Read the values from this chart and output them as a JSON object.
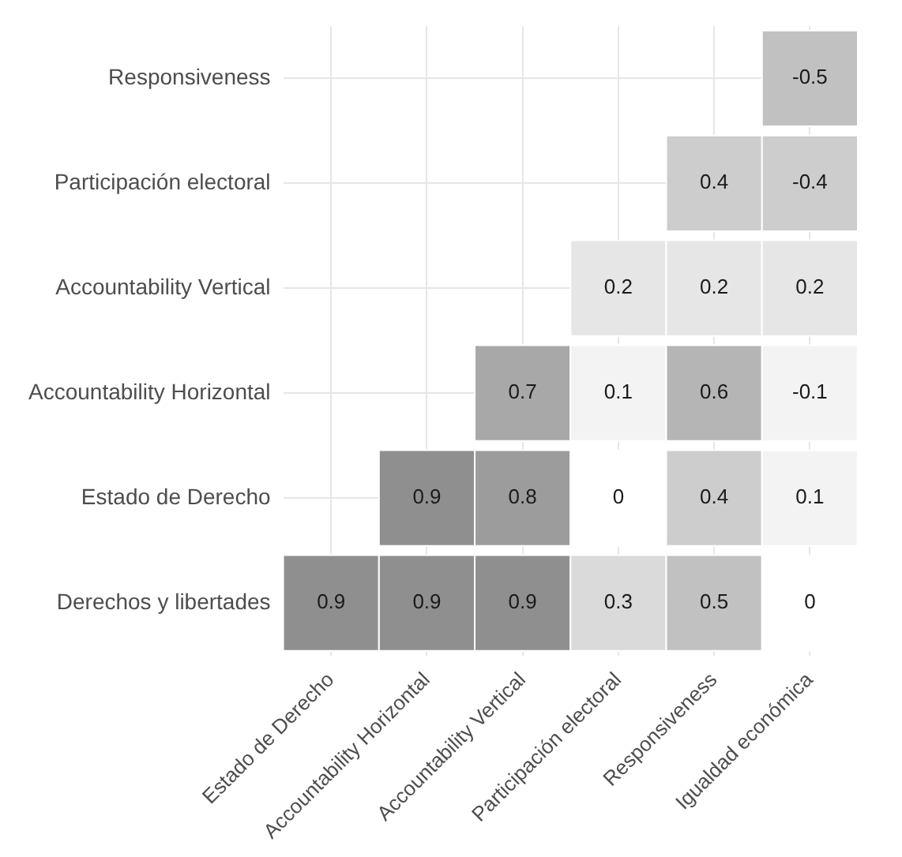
{
  "chart_data": {
    "type": "heatmap",
    "categories": [
      "Estado de Derecho",
      "Accountability Horizontal",
      "Accountability Vertical",
      "Participación electoral",
      "Responsiveness",
      "Igualdad económica"
    ],
    "y_categories": [
      "Responsiveness",
      "Participación electoral",
      "Accountability Vertical",
      "Accountability Horizontal",
      "Estado de Derecho",
      "Derechos y libertades"
    ],
    "cells": [
      [
        null,
        null,
        null,
        null,
        null,
        -0.5
      ],
      [
        null,
        null,
        null,
        null,
        0.4,
        -0.4
      ],
      [
        null,
        null,
        null,
        0.2,
        0.2,
        0.2
      ],
      [
        null,
        null,
        0.7,
        0.1,
        0.6,
        -0.1
      ],
      [
        null,
        0.9,
        0.8,
        0,
        0.4,
        0.1
      ],
      [
        0.9,
        0.9,
        0.9,
        0.3,
        0.5,
        0
      ]
    ],
    "data_labels": true,
    "grid": true
  }
}
